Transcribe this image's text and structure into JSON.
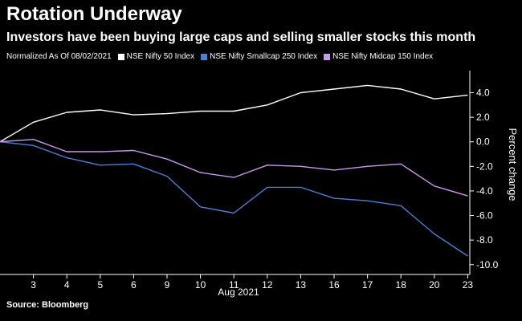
{
  "header": {
    "title": "Rotation Underway",
    "subtitle": "Investors have been buying large caps and selling smaller stocks this month"
  },
  "legend": {
    "note": "Normalized As Of 08/02/2021",
    "items": [
      {
        "label": "NSE Nifty 50 Index",
        "color": "#ffffff"
      },
      {
        "label": "NSE Nifty Smallcap 250 Index",
        "color": "#4a7fd8"
      },
      {
        "label": "NSE Nifty Midcap 150 Index",
        "color": "#c79ae8"
      }
    ]
  },
  "footer": {
    "source": "Source: Bloomberg"
  },
  "chart_data": {
    "type": "line",
    "title": "Rotation Underway",
    "xlabel": "Aug 2021",
    "ylabel": "Percent change",
    "x": [
      "2",
      "3",
      "4",
      "5",
      "6",
      "9",
      "10",
      "11",
      "12",
      "13",
      "16",
      "17",
      "18",
      "20",
      "23"
    ],
    "x_tick_labels": [
      "3",
      "4",
      "5",
      "6",
      "9",
      "10",
      "11",
      "12",
      "13",
      "16",
      "17",
      "18",
      "20",
      "23"
    ],
    "ylim": [
      -10.8,
      5.8
    ],
    "y_ticks": [
      4.0,
      2.0,
      0.0,
      -2.0,
      -4.0,
      -6.0,
      -8.0,
      -10.0
    ],
    "y_tick_labels": [
      "4.0",
      "2.0",
      "0.0",
      "-2.0",
      "-4.0",
      "-6.0",
      "-8.0",
      "-10.0"
    ],
    "series": [
      {
        "name": "NSE Nifty 50 Index",
        "color": "#ffffff",
        "values": [
          0.0,
          1.6,
          2.4,
          2.6,
          2.2,
          2.3,
          2.5,
          2.5,
          3.0,
          4.0,
          4.3,
          4.6,
          4.3,
          3.5,
          3.8
        ]
      },
      {
        "name": "NSE Nifty Smallcap 250 Index",
        "color": "#4a7fd8",
        "values": [
          0.0,
          -0.3,
          -1.3,
          -1.9,
          -1.8,
          -2.8,
          -5.3,
          -5.8,
          -3.7,
          -3.7,
          -4.6,
          -4.8,
          -5.2,
          -7.5,
          -9.3
        ]
      },
      {
        "name": "NSE Nifty Midcap 150 Index",
        "color": "#c79ae8",
        "values": [
          0.0,
          0.2,
          -0.8,
          -0.8,
          -0.7,
          -1.4,
          -2.5,
          -2.9,
          -1.9,
          -2.0,
          -2.3,
          -2.0,
          -1.8,
          -3.6,
          -4.4
        ]
      }
    ]
  }
}
